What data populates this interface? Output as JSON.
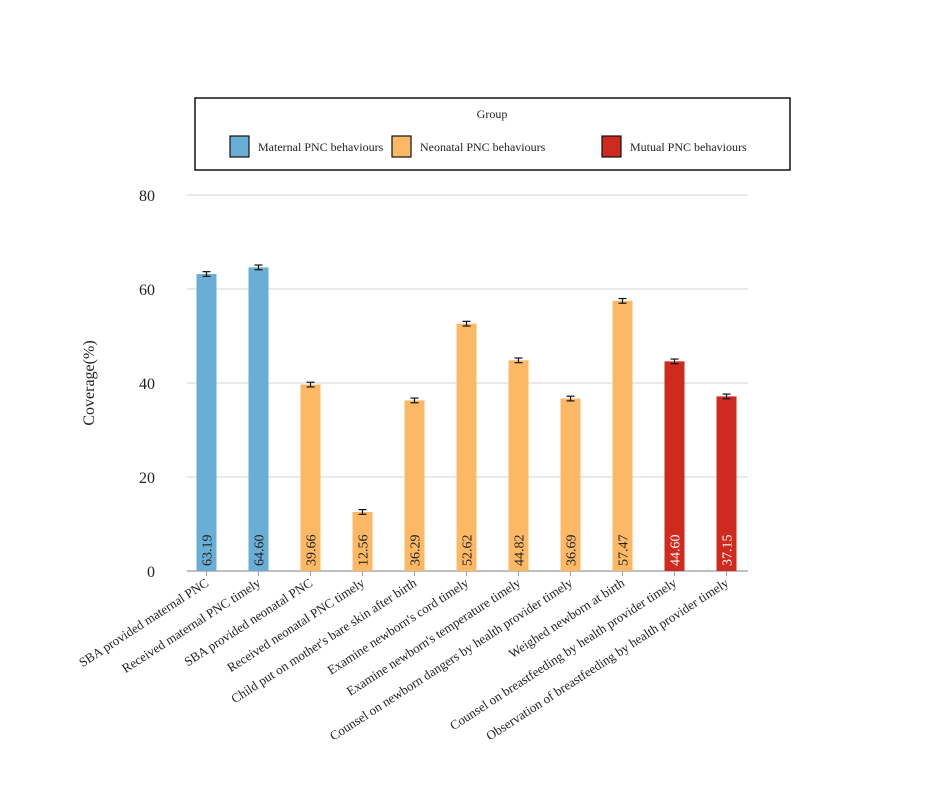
{
  "chart_data": {
    "type": "bar",
    "title": "",
    "xlabel": "",
    "ylabel": "Coverage(%)",
    "ylim": [
      0,
      80
    ],
    "yticks": [
      0,
      20,
      40,
      60,
      80
    ],
    "grid": true,
    "legend": {
      "title": "Group",
      "placement": "top",
      "entries": [
        {
          "name": "Maternal PNC behaviours",
          "color": "#6aaed6"
        },
        {
          "name": "Neonatal PNC behaviours",
          "color": "#fdb866"
        },
        {
          "name": "Mutual PNC behaviours",
          "color": "#cf2a1f"
        }
      ]
    },
    "categories": [
      "SBA provided maternal PNC",
      "Received maternal PNC timely",
      "SBA provided neonatal PNC",
      "Received neonatal PNC timely",
      "Child put on mother's bare skin after birth",
      "Examine newborn's cord timely",
      "Examine newborn's temperature timely",
      "Counsel on newborn dangers by health provider timely",
      "Weighed newborn at birth",
      "Counsel on breastfeeding by health provider timely",
      "Observation of breastfeeding by health provider timely"
    ],
    "values": [
      63.19,
      64.6,
      39.66,
      12.56,
      36.29,
      52.62,
      44.82,
      36.69,
      57.47,
      44.6,
      37.15
    ],
    "labels": [
      "63.19",
      "64.60",
      "39.66",
      "12.56",
      "36.29",
      "52.62",
      "44.82",
      "36.69",
      "57.47",
      "44.60",
      "37.15"
    ],
    "groups": [
      0,
      0,
      1,
      1,
      1,
      1,
      1,
      1,
      1,
      2,
      2
    ],
    "error": 0.5
  }
}
